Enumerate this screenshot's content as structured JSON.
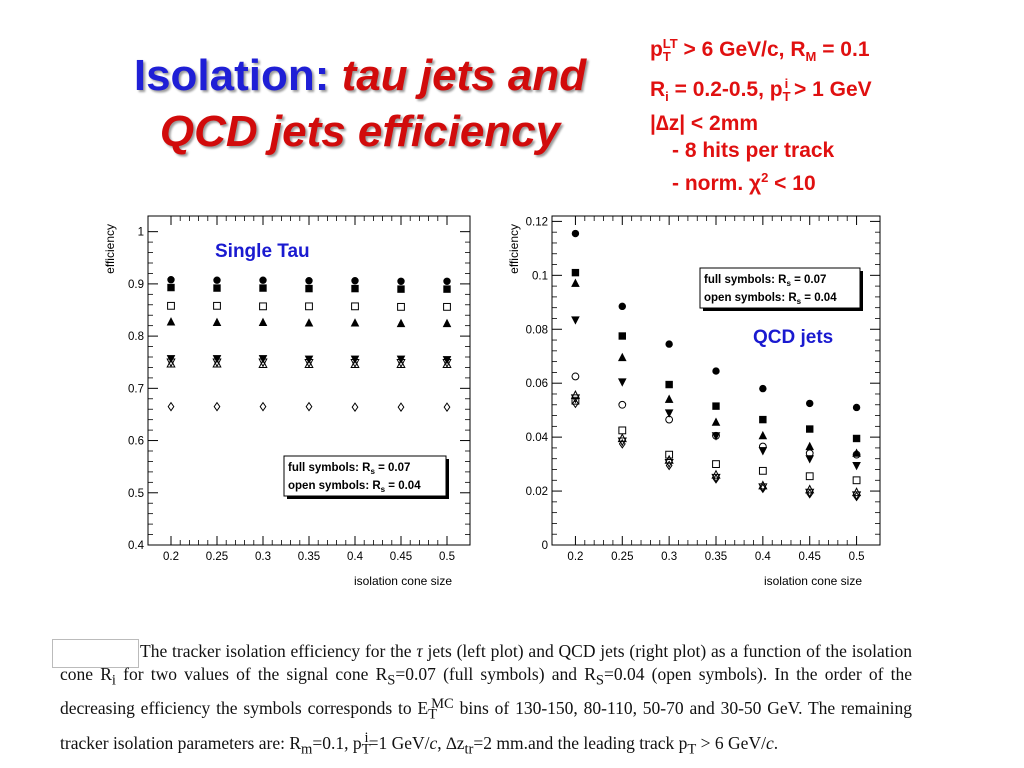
{
  "title": {
    "part1": "Isolation: ",
    "part2": "tau jets and",
    "part3": "QCD jets  efficiency"
  },
  "params": {
    "line1": {
      "a": "p",
      "a_sub": "T",
      "a_sup": "LT",
      "b": " > 6 GeV/c, R",
      "b_sub": "M",
      "c": " = 0.1"
    },
    "line2": {
      "a": "R",
      "a_sub": "i",
      "b": " = 0.2-0.5, p",
      "b_sub": "T",
      "b_sup": "i",
      "c": " > 1 GeV"
    },
    "line3": "|∆z| < 2mm",
    "line4": "- 8 hits per track",
    "line5": {
      "a": "- norm. χ",
      "a_sup": "2",
      "b": " < 10"
    }
  },
  "caption": {
    "text": "The tracker isolation efficiency for the τ jets (left plot) and QCD jets (right plot) as a function of the isolation cone Ri for two values of the signal cone RS=0.07 (full symbols) and RS=0.04 (open symbols).  In the order of the decreasing efficiency the symbols corresponds to ET^MC bins of 130-150, 80-110, 50-70 and 30-50 GeV. The remaining tracker isolation parameters are: Rm=0.1, pT^i=1 GeV/c, ∆ztr=2 mm.and the leading track pT > 6 GeV/c."
  },
  "chart_data": [
    {
      "type": "scatter",
      "panel_label": "Single Tau",
      "ylabel": "efficiency",
      "xlabel": "isolation cone size",
      "xlim": [
        0.175,
        0.525
      ],
      "ylim": [
        0.4,
        1.03
      ],
      "x_ticks": [
        "0.2",
        "0.25",
        "0.3",
        "0.35",
        "0.4",
        "0.45",
        "0.5"
      ],
      "y_ticks": [
        "0.4",
        "0.5",
        "0.6",
        "0.7",
        "0.8",
        "0.9",
        "1"
      ],
      "legend": {
        "line1": "full symbols: R",
        "line1_sub": "s",
        "line1_end": " = 0.07",
        "line2": "open symbols: R",
        "line2_sub": "s",
        "line2_end": " = 0.04",
        "position": "bottom-right"
      },
      "x": [
        0.2,
        0.25,
        0.3,
        0.35,
        0.4,
        0.45,
        0.5
      ],
      "series": [
        {
          "marker": "circle-filled",
          "values": [
            0.908,
            0.907,
            0.907,
            0.906,
            0.906,
            0.905,
            0.905
          ]
        },
        {
          "marker": "square-filled",
          "values": [
            0.893,
            0.892,
            0.892,
            0.891,
            0.891,
            0.89,
            0.89
          ]
        },
        {
          "marker": "square-open",
          "values": [
            0.858,
            0.858,
            0.857,
            0.857,
            0.857,
            0.856,
            0.856
          ]
        },
        {
          "marker": "triangle-up-filled",
          "values": [
            0.827,
            0.826,
            0.826,
            0.825,
            0.825,
            0.824,
            0.824
          ]
        },
        {
          "marker": "triangle-down-filled",
          "values": [
            0.757,
            0.757,
            0.757,
            0.756,
            0.756,
            0.756,
            0.755
          ]
        },
        {
          "marker": "triangle-down-open",
          "values": [
            0.75,
            0.75,
            0.75,
            0.749,
            0.749,
            0.749,
            0.749
          ]
        },
        {
          "marker": "triangle-up-open",
          "values": [
            0.747,
            0.747,
            0.746,
            0.746,
            0.746,
            0.746,
            0.746
          ]
        },
        {
          "marker": "diamond-open",
          "values": [
            0.665,
            0.665,
            0.665,
            0.665,
            0.664,
            0.664,
            0.664
          ]
        }
      ]
    },
    {
      "type": "scatter",
      "panel_label": "QCD jets",
      "ylabel": "efficiency",
      "xlabel": "isolation cone size",
      "xlim": [
        0.175,
        0.525
      ],
      "ylim": [
        0,
        0.122
      ],
      "x_ticks": [
        "0.2",
        "0.25",
        "0.3",
        "0.35",
        "0.4",
        "0.45",
        "0.5"
      ],
      "y_ticks": [
        "0",
        "0.02",
        "0.04",
        "0.06",
        "0.08",
        "0.1",
        "0.12"
      ],
      "legend": {
        "line1": "full symbols: R",
        "line1_sub": "s",
        "line1_end": " = 0.07",
        "line2": "open symbols: R",
        "line2_sub": "s",
        "line2_end": " = 0.04",
        "position": "top-right"
      },
      "x": [
        0.2,
        0.25,
        0.3,
        0.35,
        0.4,
        0.45,
        0.5
      ],
      "series": [
        {
          "marker": "circle-filled",
          "values": [
            0.1155,
            0.0885,
            0.0745,
            0.0645,
            0.058,
            0.0525,
            0.051
          ]
        },
        {
          "marker": "square-filled",
          "values": [
            0.101,
            0.0775,
            0.0595,
            0.0515,
            0.0465,
            0.043,
            0.0395
          ]
        },
        {
          "marker": "triangle-up-filled",
          "values": [
            0.097,
            0.0695,
            0.054,
            0.0455,
            0.0405,
            0.0365,
            0.034
          ]
        },
        {
          "marker": "triangle-down-filled",
          "values": [
            0.0835,
            0.0605,
            0.049,
            0.0405,
            0.035,
            0.032,
            0.0295
          ]
        },
        {
          "marker": "circle-open",
          "values": [
            0.0625,
            0.052,
            0.0465,
            0.0405,
            0.0365,
            0.034,
            0.0335
          ]
        },
        {
          "marker": "square-open",
          "values": [
            0.0535,
            0.0425,
            0.0335,
            0.03,
            0.0275,
            0.0255,
            0.024
          ]
        },
        {
          "marker": "triangle-up-open",
          "values": [
            0.0555,
            0.0395,
            0.0315,
            0.026,
            0.022,
            0.0205,
            0.0195
          ]
        },
        {
          "marker": "triangle-down-open",
          "values": [
            0.0545,
            0.0385,
            0.0305,
            0.025,
            0.0215,
            0.0195,
            0.0185
          ]
        },
        {
          "marker": "diamond-open",
          "values": [
            0.0525,
            0.0375,
            0.0295,
            0.0245,
            0.021,
            0.019,
            0.018
          ]
        }
      ]
    }
  ]
}
